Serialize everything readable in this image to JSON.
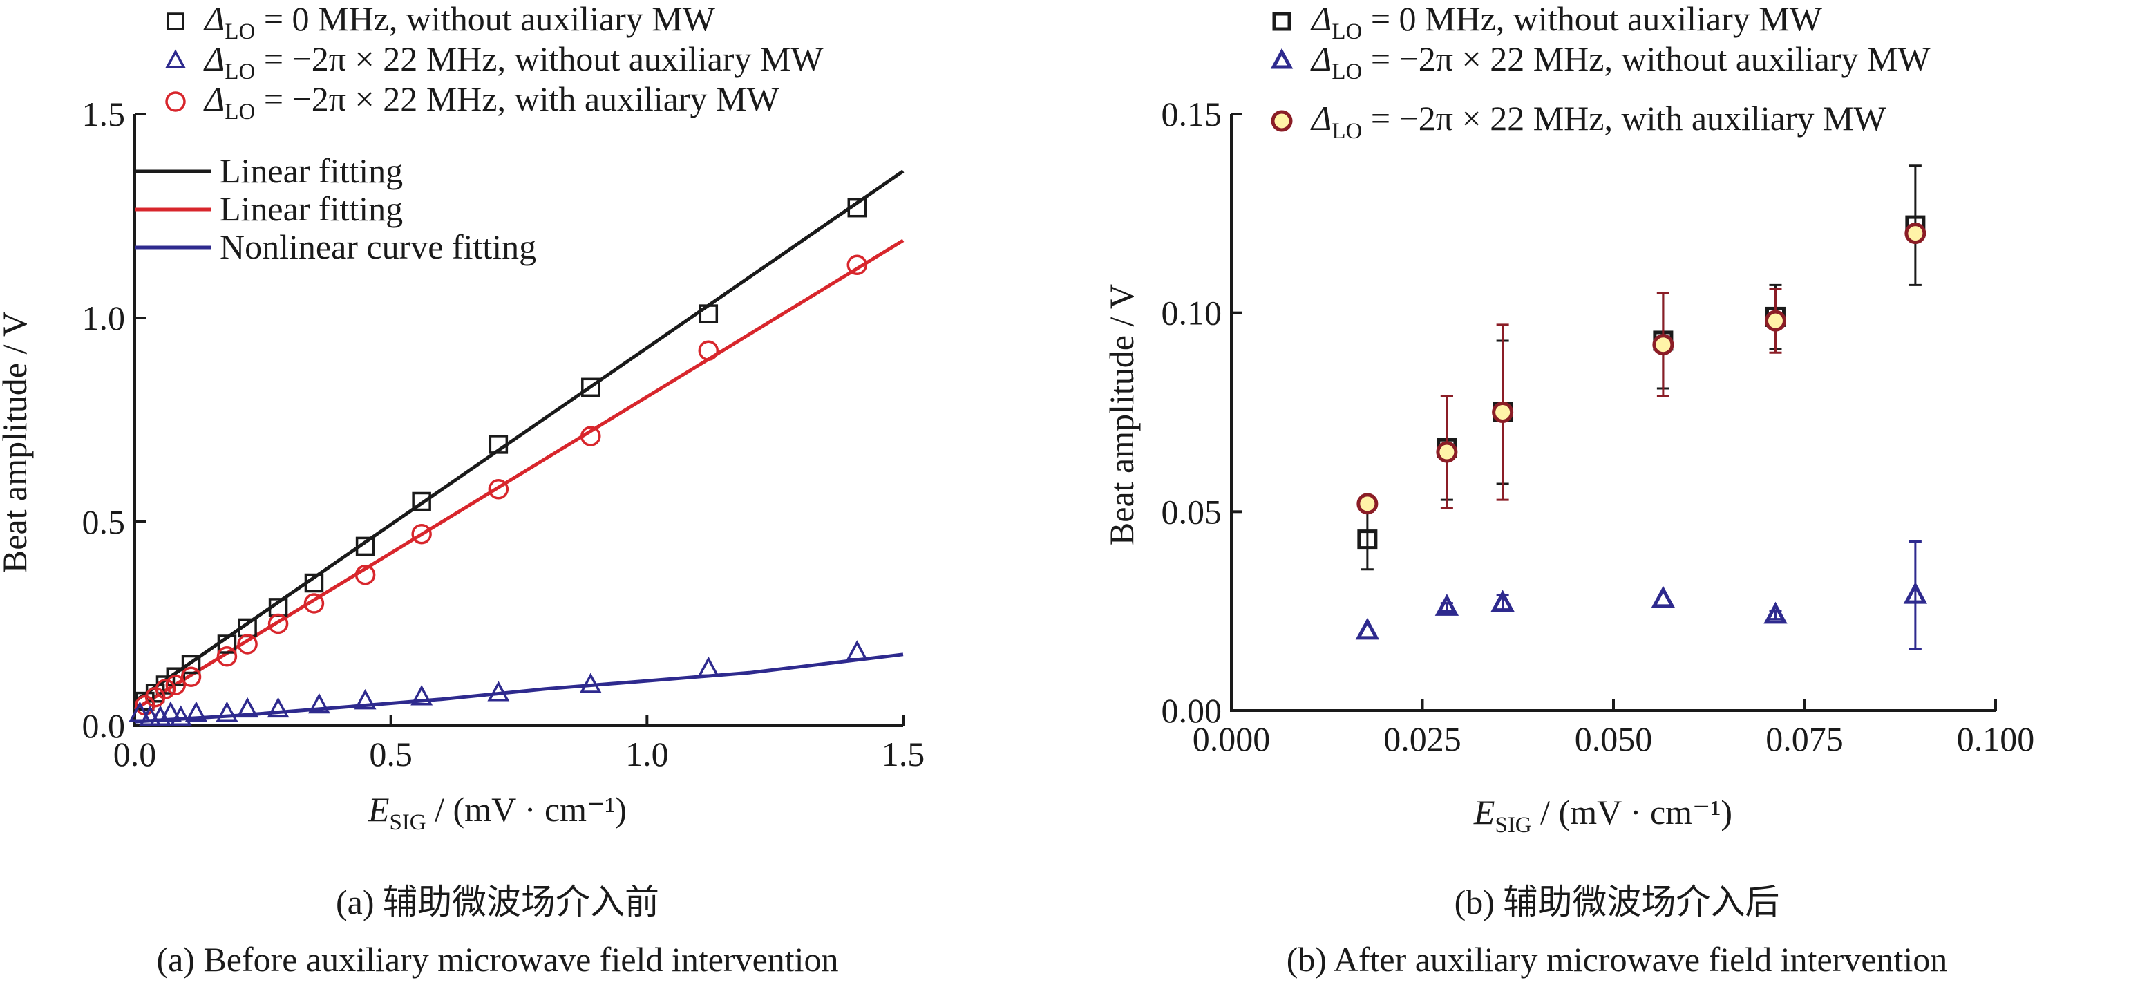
{
  "colors": {
    "black": "#1a1a1a",
    "red": "#d8262c",
    "blue": "#2e2a8e",
    "dark_red": "#8b1d26",
    "marker_fill_b": "#fff3a8"
  },
  "chart_data": [
    {
      "id": "a",
      "type": "scatter",
      "ylabel": "Beat amplitude / V",
      "xlabel": {
        "main": "E",
        "sub": "SIG",
        "rest": " / (mV · cm⁻¹)"
      },
      "xlim": [
        0,
        1.5
      ],
      "ylim": [
        0,
        1.5
      ],
      "xticks": [
        "0.0",
        "0.5",
        "1.0",
        "1.5"
      ],
      "yticks": [
        "0.0",
        "0.5",
        "1.0",
        "1.5"
      ],
      "grid": false,
      "legend_position": "top-left",
      "legend": [
        {
          "symbol": "square",
          "color": "black",
          "label_delta": "Δ",
          "label_sub": "LO",
          "label_rest": " = 0 MHz, without auxiliary MW"
        },
        {
          "symbol": "triangle",
          "color": "blue",
          "label_delta": "Δ",
          "label_sub": "LO",
          "label_rest": " = −2π × 22 MHz, without auxiliary MW"
        },
        {
          "symbol": "circle",
          "color": "red",
          "label_delta": "Δ",
          "label_sub": "LO",
          "label_rest": " = −2π × 22 MHz, with auxiliary MW"
        },
        {
          "symbol": "line",
          "color": "black",
          "label_rest": "Linear fitting"
        },
        {
          "symbol": "line",
          "color": "red",
          "label_rest": "Linear fitting"
        },
        {
          "symbol": "line",
          "color": "blue",
          "label_rest": "Nonlinear curve fitting"
        }
      ],
      "series": [
        {
          "marker": "square",
          "color": "black",
          "points": [
            [
              0.02,
              0.06
            ],
            [
              0.04,
              0.08
            ],
            [
              0.06,
              0.1
            ],
            [
              0.08,
              0.12
            ],
            [
              0.11,
              0.15
            ],
            [
              0.18,
              0.2
            ],
            [
              0.22,
              0.24
            ],
            [
              0.28,
              0.29
            ],
            [
              0.35,
              0.35
            ],
            [
              0.45,
              0.44
            ],
            [
              0.56,
              0.55
            ],
            [
              0.71,
              0.69
            ],
            [
              0.89,
              0.83
            ],
            [
              1.12,
              1.01
            ],
            [
              1.41,
              1.27
            ]
          ]
        },
        {
          "marker": "circle",
          "color": "red",
          "points": [
            [
              0.02,
              0.05
            ],
            [
              0.04,
              0.07
            ],
            [
              0.06,
              0.09
            ],
            [
              0.08,
              0.1
            ],
            [
              0.11,
              0.12
            ],
            [
              0.18,
              0.17
            ],
            [
              0.22,
              0.2
            ],
            [
              0.28,
              0.25
            ],
            [
              0.35,
              0.3
            ],
            [
              0.45,
              0.37
            ],
            [
              0.56,
              0.47
            ],
            [
              0.71,
              0.58
            ],
            [
              0.89,
              0.71
            ],
            [
              1.12,
              0.92
            ],
            [
              1.41,
              1.13
            ]
          ]
        },
        {
          "marker": "triangle",
          "color": "blue",
          "points": [
            [
              0.01,
              0.03
            ],
            [
              0.03,
              0.02
            ],
            [
              0.05,
              0.02
            ],
            [
              0.07,
              0.03
            ],
            [
              0.09,
              0.02
            ],
            [
              0.12,
              0.03
            ],
            [
              0.18,
              0.03
            ],
            [
              0.22,
              0.04
            ],
            [
              0.28,
              0.04
            ],
            [
              0.36,
              0.05
            ],
            [
              0.45,
              0.06
            ],
            [
              0.56,
              0.07
            ],
            [
              0.71,
              0.08
            ],
            [
              0.89,
              0.1
            ],
            [
              1.12,
              0.14
            ],
            [
              1.41,
              0.18
            ]
          ]
        }
      ],
      "fits": [
        {
          "color": "black",
          "x": [
            0.0,
            1.5
          ],
          "y": [
            0.06,
            1.36
          ]
        },
        {
          "color": "red",
          "x": [
            0.0,
            1.5
          ],
          "y": [
            0.04,
            1.19
          ]
        },
        {
          "color": "blue",
          "x": [
            0.0,
            0.2,
            0.4,
            0.6,
            0.8,
            1.0,
            1.2,
            1.5
          ],
          "y": [
            0.01,
            0.025,
            0.045,
            0.065,
            0.09,
            0.11,
            0.13,
            0.175
          ]
        }
      ]
    },
    {
      "id": "b",
      "type": "scatter",
      "ylabel": "Beat amplitude / V",
      "xlabel": {
        "main": "E",
        "sub": "SIG",
        "rest": " / (mV · cm⁻¹)"
      },
      "xlim": [
        0,
        0.1
      ],
      "ylim": [
        0,
        0.15
      ],
      "xticks": [
        "0.000",
        "0.025",
        "0.050",
        "0.075",
        "0.100"
      ],
      "yticks": [
        "0.00",
        "0.05",
        "0.10",
        "0.15"
      ],
      "grid": false,
      "legend_position": "top-right",
      "legend": [
        {
          "symbol": "square",
          "color": "black",
          "label_delta": "Δ",
          "label_sub": "LO",
          "label_rest": " = 0 MHz, without auxiliary MW"
        },
        {
          "symbol": "triangle",
          "color": "blue",
          "label_delta": "Δ",
          "label_sub": "LO",
          "label_rest": " = −2π × 22 MHz, without auxiliary MW"
        },
        {
          "symbol": "circle",
          "color": "dark_red",
          "label_delta": "Δ",
          "label_sub": "LO",
          "label_rest": " = −2π × 22 MHz, with auxiliary MW"
        }
      ],
      "series": [
        {
          "marker": "square",
          "color": "black",
          "points": [
            [
              0.0178,
              0.043,
              0.0075
            ],
            [
              0.0282,
              0.066,
              0.013
            ],
            [
              0.0355,
              0.075,
              0.018
            ],
            [
              0.0565,
              0.093,
              0.012
            ],
            [
              0.0712,
              0.099,
              0.008
            ],
            [
              0.0895,
              0.122,
              0.015
            ]
          ]
        },
        {
          "marker": "triangle",
          "color": "blue",
          "points": [
            [
              0.0178,
              0.02,
              0
            ],
            [
              0.0282,
              0.026,
              0.001
            ],
            [
              0.0355,
              0.027,
              0.002
            ],
            [
              0.0565,
              0.028,
              0
            ],
            [
              0.0712,
              0.024,
              0.001
            ],
            [
              0.0895,
              0.029,
              0.0135
            ]
          ]
        },
        {
          "marker": "circle",
          "color": "dark_red",
          "points": [
            [
              0.0178,
              0.052,
              0.002
            ],
            [
              0.0282,
              0.065,
              0.014
            ],
            [
              0.0355,
              0.075,
              0.022
            ],
            [
              0.0565,
              0.092,
              0.013
            ],
            [
              0.0712,
              0.098,
              0.008
            ],
            [
              0.0895,
              0.12,
              0.002
            ]
          ]
        }
      ]
    }
  ],
  "captions": [
    {
      "zh": "(a) 辅助微波场介入前",
      "en": "(a) Before auxiliary microwave field intervention"
    },
    {
      "zh": "(b)  辅助微波场介入后",
      "en": "(b) After auxiliary microwave field intervention"
    }
  ]
}
